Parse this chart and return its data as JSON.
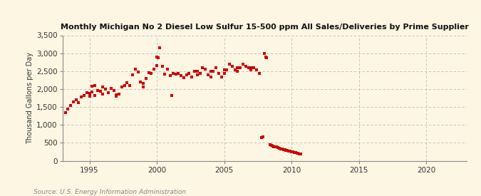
{
  "title": "Monthly Michigan No 2 Diesel Low Sulfur 15-500 ppm All Sales/Deliveries by Prime Supplier",
  "ylabel": "Thousand Gallons per Day",
  "source": "Source: U.S. Energy Information Administration",
  "background_color": "#fdf6e3",
  "dot_color": "#cc0000",
  "ylim": [
    0,
    3500
  ],
  "xlim": [
    1993.0,
    2023.0
  ],
  "yticks": [
    0,
    500,
    1000,
    1500,
    2000,
    2500,
    3000,
    3500
  ],
  "xticks": [
    1995,
    2000,
    2005,
    2010,
    2015,
    2020
  ],
  "data": [
    [
      1993.2,
      1350
    ],
    [
      1993.4,
      1450
    ],
    [
      1993.6,
      1550
    ],
    [
      1993.8,
      1650
    ],
    [
      1994.0,
      1700
    ],
    [
      1994.2,
      1620
    ],
    [
      1994.4,
      1780
    ],
    [
      1994.6,
      1820
    ],
    [
      1994.8,
      1900
    ],
    [
      1995.0,
      1880
    ],
    [
      1995.2,
      2080
    ],
    [
      1995.4,
      2100
    ],
    [
      1995.0,
      1800
    ],
    [
      1995.2,
      1920
    ],
    [
      1995.4,
      1820
    ],
    [
      1995.6,
      1960
    ],
    [
      1995.8,
      1940
    ],
    [
      1996.0,
      1860
    ],
    [
      1996.0,
      2050
    ],
    [
      1996.2,
      2000
    ],
    [
      1996.4,
      1900
    ],
    [
      1996.6,
      2020
    ],
    [
      1996.8,
      1950
    ],
    [
      1997.0,
      1800
    ],
    [
      1997.0,
      1830
    ],
    [
      1997.2,
      1860
    ],
    [
      1997.4,
      2050
    ],
    [
      1997.6,
      2100
    ],
    [
      1997.8,
      2180
    ],
    [
      1998.0,
      2100
    ],
    [
      1998.0,
      2100
    ],
    [
      1998.2,
      2400
    ],
    [
      1998.4,
      2550
    ],
    [
      1998.6,
      2480
    ],
    [
      1998.8,
      2200
    ],
    [
      1999.0,
      2150
    ],
    [
      1999.0,
      2060
    ],
    [
      1999.2,
      2300
    ],
    [
      1999.4,
      2460
    ],
    [
      1999.6,
      2440
    ],
    [
      1999.8,
      2560
    ],
    [
      2000.0,
      2650
    ],
    [
      2000.0,
      2900
    ],
    [
      2000.1,
      2880
    ],
    [
      2000.2,
      3150
    ],
    [
      2000.4,
      2640
    ],
    [
      2000.6,
      2420
    ],
    [
      2000.8,
      2560
    ],
    [
      2001.0,
      2380
    ],
    [
      2001.1,
      1820
    ],
    [
      2001.2,
      2440
    ],
    [
      2001.4,
      2410
    ],
    [
      2001.6,
      2430
    ],
    [
      2001.8,
      2380
    ],
    [
      2002.0,
      2310
    ],
    [
      2002.2,
      2390
    ],
    [
      2002.4,
      2440
    ],
    [
      2002.6,
      2340
    ],
    [
      2002.8,
      2490
    ],
    [
      2003.0,
      2390
    ],
    [
      2003.0,
      2490
    ],
    [
      2003.2,
      2440
    ],
    [
      2003.4,
      2590
    ],
    [
      2003.6,
      2550
    ],
    [
      2003.8,
      2390
    ],
    [
      2004.0,
      2490
    ],
    [
      2004.0,
      2340
    ],
    [
      2004.2,
      2490
    ],
    [
      2004.4,
      2590
    ],
    [
      2004.6,
      2440
    ],
    [
      2004.8,
      2340
    ],
    [
      2005.0,
      2540
    ],
    [
      2005.0,
      2440
    ],
    [
      2005.2,
      2540
    ],
    [
      2005.4,
      2690
    ],
    [
      2005.6,
      2640
    ],
    [
      2005.8,
      2540
    ],
    [
      2006.0,
      2590
    ],
    [
      2006.0,
      2490
    ],
    [
      2006.2,
      2590
    ],
    [
      2006.4,
      2690
    ],
    [
      2006.6,
      2640
    ],
    [
      2006.8,
      2590
    ],
    [
      2007.0,
      2600
    ],
    [
      2007.0,
      2540
    ],
    [
      2007.2,
      2590
    ],
    [
      2007.4,
      2540
    ],
    [
      2007.6,
      2430
    ],
    [
      2007.75,
      650
    ],
    [
      2007.9,
      670
    ],
    [
      2008.0,
      3000
    ],
    [
      2008.1,
      2900
    ],
    [
      2008.15,
      2870
    ],
    [
      2008.4,
      450
    ],
    [
      2008.5,
      420
    ],
    [
      2008.6,
      400
    ],
    [
      2008.7,
      385
    ],
    [
      2008.8,
      395
    ],
    [
      2008.9,
      380
    ],
    [
      2009.0,
      360
    ],
    [
      2009.1,
      345
    ],
    [
      2009.2,
      330
    ],
    [
      2009.3,
      320
    ],
    [
      2009.4,
      310
    ],
    [
      2009.5,
      305
    ],
    [
      2009.6,
      295
    ],
    [
      2009.7,
      280
    ],
    [
      2009.8,
      270
    ],
    [
      2009.9,
      265
    ],
    [
      2010.0,
      255
    ],
    [
      2010.1,
      245
    ],
    [
      2010.2,
      235
    ],
    [
      2010.3,
      225
    ],
    [
      2010.4,
      215
    ],
    [
      2010.5,
      205
    ],
    [
      2010.6,
      195
    ],
    [
      2010.7,
      190
    ]
  ]
}
